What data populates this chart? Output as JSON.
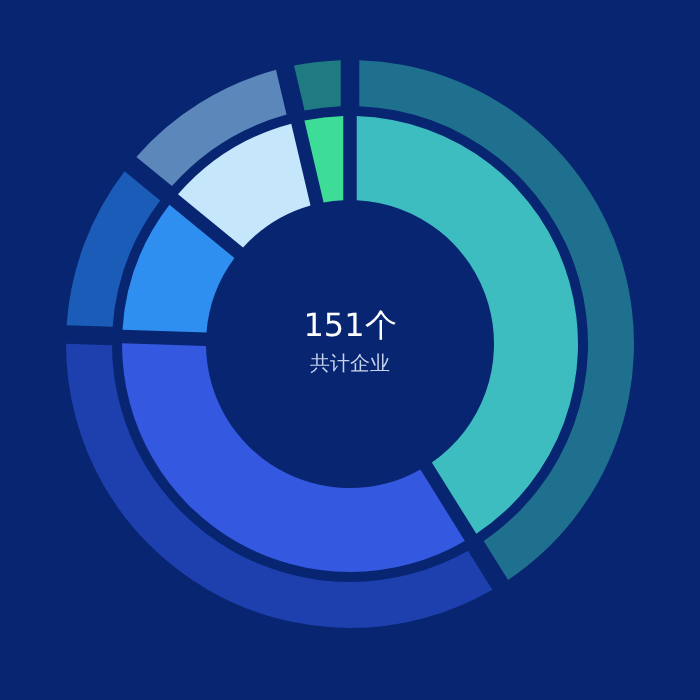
{
  "chart_data": {
    "type": "donut",
    "title": "151个",
    "subtitle": "共计企业",
    "categories": [
      null,
      null,
      null,
      null,
      null
    ],
    "series": [
      {
        "values": [
          42,
          35,
          10,
          10,
          3
        ],
        "colors": [
          "#1f6f8f",
          "#1e3fae",
          "#1a5cb8",
          "#5b87bb",
          "#1f7a82"
        ]
      },
      {
        "values": [
          42,
          35,
          10,
          10,
          3
        ],
        "colors": [
          "#3dbdbf",
          "#3558e0",
          "#2e8ff0",
          "#c6e6fb",
          "#3ddc97"
        ]
      }
    ]
  }
}
